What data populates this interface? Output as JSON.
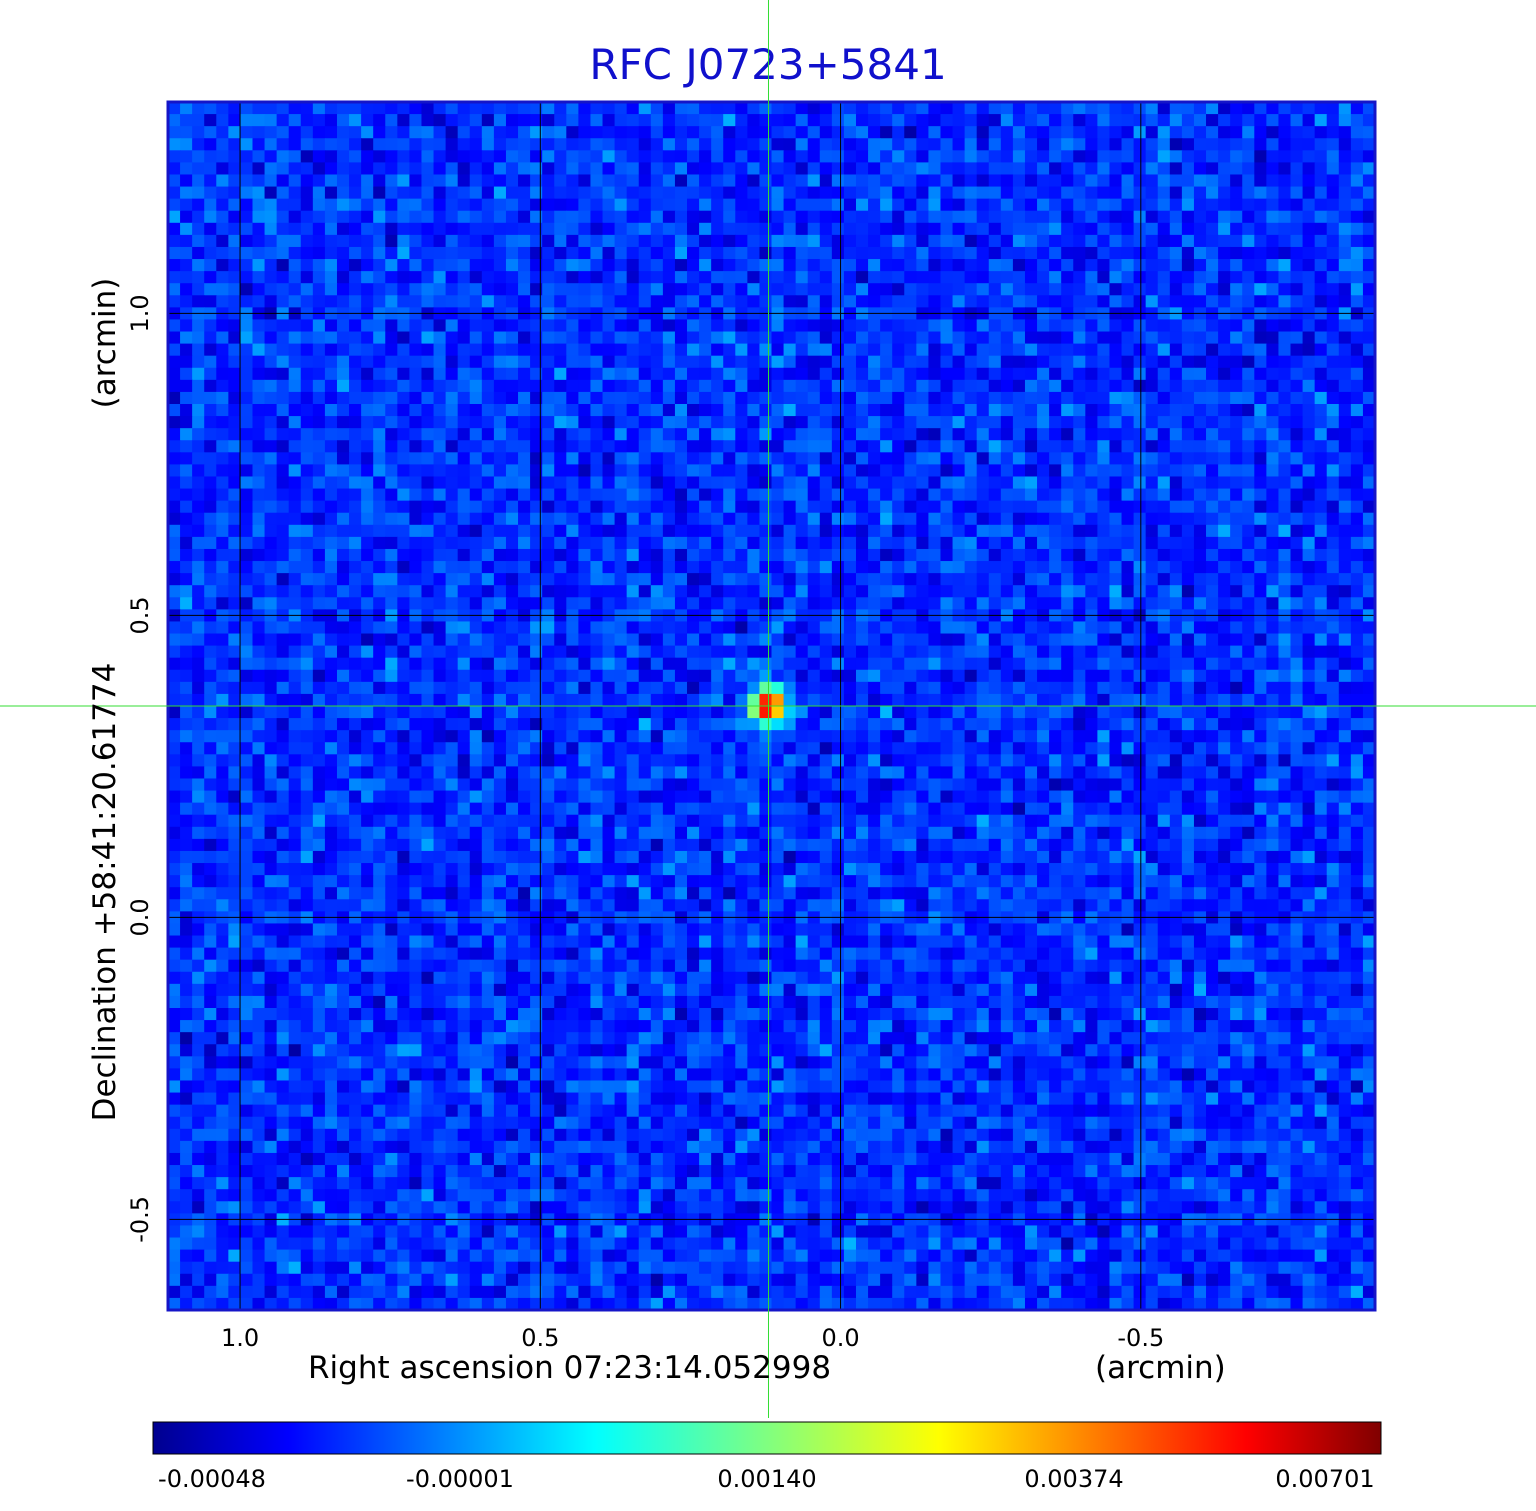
{
  "chart_data": {
    "type": "heatmap",
    "title": "RFC J0723+5841",
    "xlabel": "Right ascension  07:23:14.052998",
    "xunit": "(arcmin)",
    "ylabel": "Declination  +58:41:20.61774",
    "yunit": "(arcmin)",
    "x_ticks": [
      {
        "value": 1.0,
        "label": "1.0"
      },
      {
        "value": 0.5,
        "label": "0.5"
      },
      {
        "value": 0.0,
        "label": "0.0"
      },
      {
        "value": -0.5,
        "label": "-0.5"
      }
    ],
    "y_ticks": [
      {
        "value": 1.0,
        "label": "1.0"
      },
      {
        "value": 0.5,
        "label": "0.5"
      },
      {
        "value": 0.0,
        "label": "0.0"
      },
      {
        "value": -0.5,
        "label": "-0.5"
      }
    ],
    "xlim": [
      1.12,
      -0.89
    ],
    "ylim": [
      -0.65,
      1.35
    ],
    "grid": true,
    "crosshair": {
      "x": 0.12,
      "y": 0.35
    },
    "source_peak": {
      "x": 0.12,
      "y": 0.35,
      "value": 0.00701
    },
    "colorbar": {
      "ticks": [
        "-0.00048",
        "-0.00001",
        "0.00140",
        "0.00374",
        "0.00701"
      ],
      "colormap": "jet"
    }
  },
  "colors": {
    "title": "#1010cc",
    "frame": "#1515c8",
    "grid": "#000000",
    "crosshair": "#33dd33"
  }
}
